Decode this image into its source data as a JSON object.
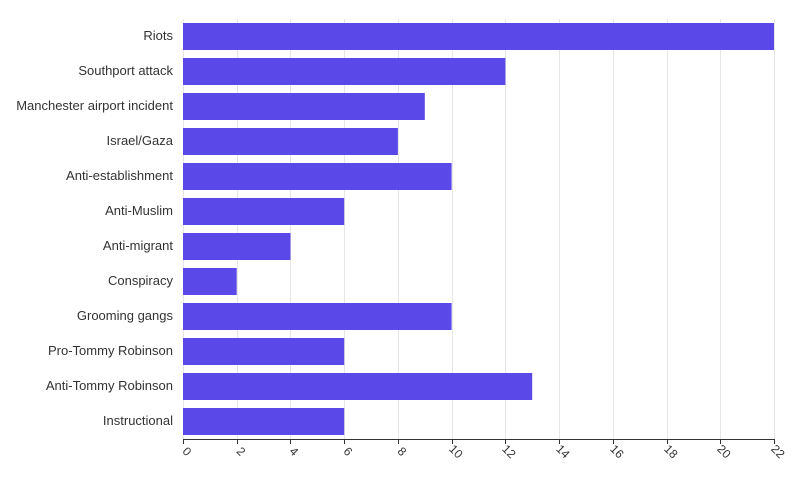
{
  "chart_data": {
    "type": "bar",
    "orientation": "horizontal",
    "categories": [
      "Riots",
      "Southport attack",
      "Manchester airport incident",
      "Israel/Gaza",
      "Anti-establishment",
      "Anti-Muslim",
      "Anti-migrant",
      "Conspiracy",
      "Grooming gangs",
      "Pro-Tommy Robinson",
      "Anti-Tommy Robinson",
      "Instructional"
    ],
    "values": [
      22,
      12,
      9,
      8,
      10,
      6,
      4,
      2,
      10,
      6,
      13,
      6
    ],
    "xlim": [
      0,
      22
    ],
    "xticks": [
      0,
      2,
      4,
      6,
      8,
      10,
      12,
      14,
      16,
      18,
      20,
      22
    ],
    "bar_color": "#5b48e8",
    "grid": true,
    "title": "",
    "xlabel": "",
    "ylabel": ""
  }
}
